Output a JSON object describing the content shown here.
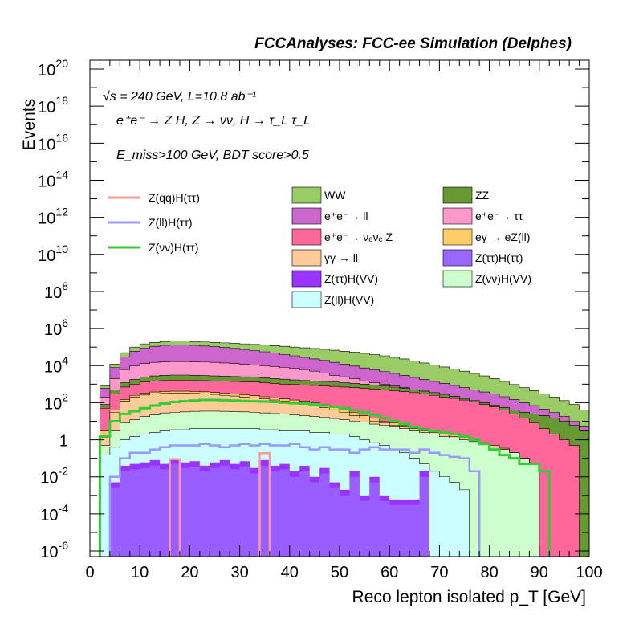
{
  "chart_data": {
    "type": "histogram",
    "title": "FCCAnalyses: FCC-ee Simulation (Delphes)",
    "annotations": [
      "√s = 240 GeV, L=10.8 ab⁻¹",
      "e⁺e⁻ → Z H, Z → νν, H → τ_L τ_L",
      "E_miss>100 GeV, BDT score>0.5"
    ],
    "xlabel": "Reco lepton isolated p_T [GeV]",
    "ylabel": "Events",
    "xlim": [
      0,
      100
    ],
    "ylim": [
      5e-07,
      3e+20
    ],
    "yscale": "log",
    "bin_width": 2,
    "x_ticks": [
      "0",
      "10",
      "20",
      "30",
      "40",
      "50",
      "60",
      "70",
      "80",
      "90",
      "100"
    ],
    "y_ticks": [
      {
        "base": "10",
        "exp": "20"
      },
      {
        "base": "10",
        "exp": "18"
      },
      {
        "base": "10",
        "exp": "16"
      },
      {
        "base": "10",
        "exp": "14"
      },
      {
        "base": "10",
        "exp": "12"
      },
      {
        "base": "10",
        "exp": "10"
      },
      {
        "base": "10",
        "exp": "8"
      },
      {
        "base": "10",
        "exp": "6"
      },
      {
        "base": "10",
        "exp": "4"
      },
      {
        "base": "10",
        "exp": "2"
      },
      {
        "base": "1",
        "exp": ""
      },
      {
        "base": "10",
        "exp": "-2"
      },
      {
        "base": "10",
        "exp": "-4"
      },
      {
        "base": "10",
        "exp": "-6"
      }
    ],
    "stack_top_boundaries": [
      {
        "name": "Z(ll)H(VV)",
        "color": "#ccffff",
        "tops": [
          0,
          0.15,
          0.4,
          1,
          1.5,
          2,
          2.5,
          3,
          3.5,
          3.5,
          4,
          4,
          4,
          4,
          4,
          4,
          4,
          3.5,
          3.5,
          3,
          3,
          3,
          2.5,
          2.5,
          2,
          2,
          1.5,
          1,
          0.7,
          0.5,
          0.3,
          0.2,
          0.1,
          0.05,
          0.02,
          0.01,
          0.005,
          0.002,
          0,
          0,
          0,
          0,
          0,
          0,
          0,
          0,
          0,
          0,
          0,
          0
        ]
      },
      {
        "name": "Z(νν)H(VV)",
        "color": "#ccffcc",
        "tops": [
          0,
          0.5,
          3,
          8,
          12,
          18,
          22,
          28,
          30,
          32,
          34,
          35,
          35,
          34,
          33,
          32,
          30,
          28,
          26,
          24,
          22,
          20,
          18,
          16,
          14,
          12,
          10,
          9,
          7,
          6,
          5,
          4,
          3,
          2.5,
          2,
          1.5,
          1.2,
          1,
          0.8,
          0.6,
          0.4,
          0.3,
          0.2,
          0.1,
          0.05,
          0,
          0,
          0,
          0,
          0
        ]
      },
      {
        "name": "γγ → ll",
        "color": "#ffcc99",
        "tops": [
          0,
          2,
          30,
          120,
          200,
          260,
          300,
          320,
          330,
          330,
          320,
          300,
          280,
          250,
          230,
          200,
          180,
          160,
          140,
          120,
          100,
          85,
          70,
          55,
          40,
          30,
          20,
          15,
          10,
          8,
          6,
          5,
          4,
          3,
          2.5,
          2,
          1.5,
          1.2,
          1,
          0.6,
          0.4,
          0.3,
          0.2,
          0.1,
          0.05,
          0,
          0,
          0,
          0,
          0
        ]
      },
      {
        "name": "eγ → eZ(ll)",
        "color": "#ffcc66",
        "tops": [
          0,
          3,
          40,
          150,
          250,
          330,
          380,
          410,
          420,
          420,
          410,
          390,
          360,
          330,
          300,
          270,
          240,
          210,
          180,
          160,
          140,
          120,
          100,
          80,
          60,
          40,
          30,
          20,
          15,
          10,
          8,
          6,
          5,
          4,
          3,
          2.5,
          2,
          1.5,
          1,
          0.7,
          0.5,
          0.35,
          0.2,
          0.1,
          0.05,
          0,
          0,
          0,
          0,
          0
        ]
      },
      {
        "name": "e⁺e⁻ → ν_e ν_e Z",
        "color": "#ff6699",
        "tops": [
          0,
          50,
          300,
          700,
          1000,
          1300,
          1500,
          1600,
          1650,
          1650,
          1600,
          1550,
          1500,
          1450,
          1400,
          1350,
          1300,
          1200,
          1100,
          1000,
          950,
          900,
          850,
          800,
          750,
          700,
          650,
          600,
          550,
          500,
          450,
          400,
          350,
          300,
          250,
          200,
          170,
          140,
          110,
          80,
          60,
          40,
          25,
          15,
          8,
          4,
          2,
          1,
          0.5,
          0
        ]
      },
      {
        "name": "ZZ",
        "color": "#669933",
        "tops": [
          0,
          80,
          500,
          1200,
          1800,
          2400,
          2800,
          3000,
          3100,
          3100,
          3000,
          2900,
          2800,
          2700,
          2600,
          2500,
          2400,
          2200,
          2000,
          1850,
          1700,
          1600,
          1500,
          1400,
          1300,
          1200,
          1100,
          1000,
          900,
          800,
          700,
          600,
          500,
          420,
          350,
          280,
          220,
          170,
          130,
          100,
          75,
          55,
          40,
          30,
          25,
          20,
          15,
          10,
          6,
          3
        ]
      },
      {
        "name": "e⁺e⁻ → ττ",
        "color": "#ff99cc",
        "tops": [
          0,
          200,
          2000,
          6000,
          10000,
          13000,
          15000,
          16000,
          16500,
          16500,
          16000,
          15500,
          15000,
          14000,
          13000,
          12000,
          11000,
          10000,
          9000,
          8000,
          7000,
          6000,
          5000,
          4000,
          3000,
          2500,
          2000,
          1500,
          1200,
          1000,
          800,
          650,
          500,
          420,
          350,
          280,
          220,
          170,
          130,
          100,
          75,
          55,
          40,
          30,
          25,
          20,
          15,
          10,
          6,
          3
        ]
      },
      {
        "name": "e⁺e⁻ → ll",
        "color": "#cc66cc",
        "tops": [
          0,
          600,
          8000,
          30000,
          60000,
          90000,
          110000,
          125000,
          130000,
          130000,
          125000,
          115000,
          105000,
          95000,
          85000,
          75000,
          65000,
          56000,
          48000,
          40000,
          34000,
          28000,
          23000,
          19000,
          15000,
          12000,
          9500,
          7500,
          6000,
          4800,
          3800,
          3000,
          2300,
          1800,
          1400,
          1100,
          850,
          650,
          500,
          380,
          290,
          210,
          150,
          100,
          70,
          45,
          30,
          18,
          10,
          5
        ]
      },
      {
        "name": "WW",
        "color": "#99cc66",
        "tops": [
          0,
          800,
          12000,
          50000,
          100000,
          150000,
          180000,
          200000,
          210000,
          210000,
          200000,
          190000,
          180000,
          170000,
          160000,
          150000,
          140000,
          130000,
          120000,
          110000,
          100000,
          92000,
          84000,
          76000,
          68000,
          60000,
          53000,
          46000,
          40000,
          34000,
          28000,
          23000,
          18000,
          14000,
          11000,
          8500,
          6500,
          5000,
          3800,
          2800,
          2000,
          1400,
          950,
          650,
          450,
          300,
          200,
          130,
          80,
          40
        ]
      }
    ],
    "dark_fill_tops": {
      "name": "Z(ττ)H(VV)",
      "color": "#9933ff",
      "tops": [
        0,
        0,
        0.005,
        0.04,
        0.05,
        0.06,
        0.08,
        0.05,
        0.1,
        0.06,
        0.07,
        0.04,
        0.06,
        0.08,
        0.05,
        0.07,
        0.03,
        0.08,
        0.04,
        0.05,
        0.02,
        0.04,
        0.01,
        0.03,
        0.005,
        0.002,
        0.02,
        0.001,
        0.01,
        0.001,
        0.0006,
        0.0006,
        0.0006,
        0.02,
        0,
        0,
        0,
        0,
        0,
        0,
        0,
        0,
        0,
        0,
        0,
        0,
        0,
        0,
        0,
        0
      ]
    },
    "overlay_lines": [
      {
        "name": "Z(qq)H(ττ)",
        "color": "#ff9999",
        "values": [
          0,
          0,
          0,
          0,
          0,
          0,
          0,
          0,
          0.09,
          0,
          0,
          0,
          0,
          0,
          0,
          0,
          0,
          0.19,
          0,
          0,
          0,
          0,
          0,
          0,
          0,
          0,
          0,
          0,
          0,
          0,
          0,
          0,
          0,
          0,
          0,
          0,
          0,
          0,
          0,
          0,
          0,
          0,
          0,
          0,
          0,
          0,
          0,
          0,
          0,
          0
        ]
      },
      {
        "name": "Z(ll)H(ττ)",
        "color": "#9999ff",
        "values": [
          0,
          0,
          0.01,
          0.1,
          0.2,
          0.2,
          0.3,
          0.4,
          0.5,
          0.5,
          0.5,
          0.6,
          0.5,
          0.4,
          0.5,
          0.6,
          0.5,
          0.6,
          0.5,
          0.5,
          0.6,
          0.4,
          0.3,
          0.4,
          0.3,
          0.3,
          0.2,
          0.3,
          0.4,
          0.3,
          0.3,
          0.3,
          0.2,
          0.3,
          0.2,
          0.15,
          0.12,
          0.1,
          0.02,
          0,
          0,
          0,
          0,
          0,
          0,
          0,
          0,
          0,
          0,
          0
        ]
      },
      {
        "name": "Z(νν)H(ττ)",
        "color": "#33cc33",
        "values": [
          0,
          1.5,
          10,
          25,
          35,
          50,
          70,
          90,
          110,
          120,
          130,
          140,
          140,
          135,
          130,
          125,
          120,
          115,
          110,
          100,
          95,
          90,
          80,
          70,
          60,
          50,
          40,
          30,
          22,
          15,
          10,
          7,
          5,
          3.5,
          3,
          2.5,
          2,
          1.5,
          1,
          0.6,
          0.3,
          0.15,
          0.1,
          0.05,
          0.05,
          0.02,
          0,
          0,
          0,
          0
        ]
      }
    ],
    "legend_lines": [
      "Z(qq)H(ττ)",
      "Z(ll)H(ττ)",
      "Z(νν)H(ττ)"
    ],
    "legend_fills": [
      {
        "label": "WW",
        "color": "#99cc66"
      },
      {
        "label": "ZZ",
        "color": "#669933"
      },
      {
        "label": "e⁺e⁻→ ll",
        "color": "#cc66cc"
      },
      {
        "label": "e⁺e⁻→ ττ",
        "color": "#ff99cc"
      },
      {
        "label": "e⁺e⁻→ νₑνₑ Z",
        "color": "#ff6699"
      },
      {
        "label": "eγ → eZ(ll)",
        "color": "#ffcc66"
      },
      {
        "label": "γγ → ll",
        "color": "#ffcc99"
      },
      {
        "label": "Z(ττ)H(ττ)",
        "color": "#9966ff"
      },
      {
        "label": "Z(ττ)H(VV)",
        "color": "#9933ff"
      },
      {
        "label": "Z(νν)H(VV)",
        "color": "#ccffcc"
      },
      {
        "label": "Z(ll)H(VV)",
        "color": "#ccffff"
      }
    ],
    "legend_placement": "top"
  }
}
